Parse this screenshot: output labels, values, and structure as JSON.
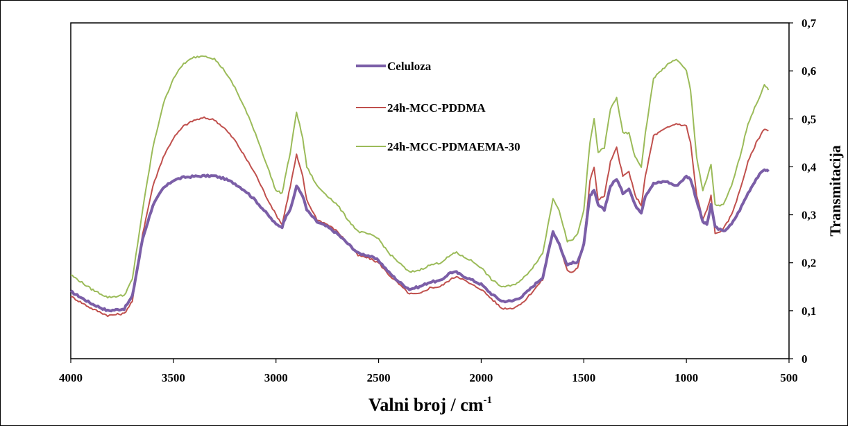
{
  "chart_data": {
    "type": "line",
    "title": "",
    "xlabel": "Valni broj / cm",
    "xlabel_sup": "-1",
    "ylabel": "Transmitacija",
    "xlim": [
      4000,
      500
    ],
    "ylim": [
      0,
      0.7
    ],
    "x_ticks": [
      "4000",
      "3500",
      "3000",
      "2500",
      "2000",
      "1500",
      "1000",
      "500"
    ],
    "y_ticks": [
      "0",
      "0,1",
      "0,2",
      "0,3",
      "0,4",
      "0,5",
      "0,6",
      "0,7"
    ],
    "y_axis_side": "right",
    "grid": false,
    "legend_position": "upper-middle",
    "series": [
      {
        "name": "Celuloza",
        "color": "#7b5ea7",
        "width": 4,
        "x": [
          4000,
          3900,
          3820,
          3740,
          3700,
          3650,
          3600,
          3550,
          3500,
          3450,
          3400,
          3350,
          3300,
          3250,
          3200,
          3150,
          3100,
          3050,
          3000,
          2970,
          2950,
          2930,
          2900,
          2870,
          2850,
          2800,
          2750,
          2700,
          2650,
          2600,
          2550,
          2500,
          2450,
          2400,
          2350,
          2300,
          2250,
          2200,
          2150,
          2120,
          2100,
          2050,
          2000,
          1950,
          1900,
          1850,
          1800,
          1750,
          1700,
          1650,
          1620,
          1600,
          1580,
          1560,
          1530,
          1500,
          1470,
          1450,
          1430,
          1400,
          1370,
          1340,
          1310,
          1280,
          1250,
          1220,
          1200,
          1160,
          1100,
          1050,
          1000,
          980,
          950,
          920,
          900,
          880,
          860,
          820,
          780,
          740,
          700,
          660,
          620,
          600
        ],
        "y": [
          0.14,
          0.115,
          0.1,
          0.104,
          0.13,
          0.25,
          0.32,
          0.355,
          0.372,
          0.378,
          0.38,
          0.381,
          0.381,
          0.375,
          0.365,
          0.35,
          0.33,
          0.305,
          0.28,
          0.275,
          0.3,
          0.31,
          0.36,
          0.34,
          0.31,
          0.285,
          0.275,
          0.26,
          0.24,
          0.22,
          0.215,
          0.205,
          0.18,
          0.16,
          0.145,
          0.15,
          0.16,
          0.162,
          0.18,
          0.18,
          0.175,
          0.165,
          0.155,
          0.135,
          0.12,
          0.12,
          0.13,
          0.15,
          0.17,
          0.265,
          0.24,
          0.215,
          0.195,
          0.2,
          0.2,
          0.24,
          0.34,
          0.35,
          0.32,
          0.31,
          0.36,
          0.375,
          0.345,
          0.355,
          0.32,
          0.305,
          0.34,
          0.365,
          0.37,
          0.36,
          0.38,
          0.375,
          0.33,
          0.285,
          0.28,
          0.32,
          0.275,
          0.265,
          0.28,
          0.31,
          0.345,
          0.375,
          0.395,
          0.39
        ]
      },
      {
        "name": "24h-MCC-PDDMA",
        "color": "#c0504d",
        "width": 2,
        "x": [
          4000,
          3900,
          3820,
          3740,
          3700,
          3650,
          3600,
          3550,
          3500,
          3450,
          3400,
          3350,
          3300,
          3250,
          3200,
          3150,
          3100,
          3050,
          3000,
          2970,
          2950,
          2930,
          2900,
          2870,
          2850,
          2800,
          2750,
          2700,
          2650,
          2600,
          2550,
          2500,
          2450,
          2400,
          2350,
          2300,
          2250,
          2200,
          2150,
          2120,
          2100,
          2050,
          2000,
          1950,
          1900,
          1850,
          1800,
          1750,
          1700,
          1650,
          1620,
          1600,
          1580,
          1560,
          1530,
          1500,
          1470,
          1450,
          1430,
          1400,
          1370,
          1340,
          1310,
          1280,
          1250,
          1220,
          1200,
          1160,
          1100,
          1050,
          1000,
          980,
          950,
          920,
          900,
          880,
          860,
          820,
          780,
          740,
          700,
          660,
          620,
          600
        ],
        "y": [
          0.13,
          0.105,
          0.09,
          0.094,
          0.12,
          0.26,
          0.36,
          0.42,
          0.46,
          0.485,
          0.497,
          0.502,
          0.498,
          0.48,
          0.455,
          0.42,
          0.385,
          0.34,
          0.3,
          0.28,
          0.32,
          0.36,
          0.425,
          0.38,
          0.33,
          0.29,
          0.28,
          0.265,
          0.24,
          0.215,
          0.21,
          0.2,
          0.175,
          0.155,
          0.135,
          0.135,
          0.148,
          0.15,
          0.165,
          0.172,
          0.168,
          0.155,
          0.145,
          0.125,
          0.105,
          0.105,
          0.115,
          0.14,
          0.165,
          0.265,
          0.24,
          0.21,
          0.185,
          0.18,
          0.19,
          0.24,
          0.37,
          0.4,
          0.33,
          0.34,
          0.41,
          0.44,
          0.38,
          0.39,
          0.34,
          0.32,
          0.38,
          0.465,
          0.48,
          0.49,
          0.485,
          0.45,
          0.34,
          0.29,
          0.31,
          0.34,
          0.26,
          0.27,
          0.3,
          0.35,
          0.41,
          0.45,
          0.48,
          0.475
        ]
      },
      {
        "name": "24h-MCC-PDMAEMA-30",
        "color": "#9bbb59",
        "width": 2,
        "x": [
          4000,
          3900,
          3820,
          3740,
          3700,
          3650,
          3600,
          3550,
          3500,
          3450,
          3400,
          3350,
          3300,
          3250,
          3200,
          3150,
          3100,
          3050,
          3000,
          2970,
          2950,
          2930,
          2900,
          2870,
          2850,
          2800,
          2750,
          2700,
          2650,
          2600,
          2550,
          2500,
          2450,
          2400,
          2350,
          2300,
          2250,
          2200,
          2150,
          2120,
          2100,
          2050,
          2000,
          1950,
          1900,
          1850,
          1800,
          1750,
          1700,
          1650,
          1620,
          1600,
          1580,
          1560,
          1530,
          1500,
          1470,
          1450,
          1430,
          1400,
          1370,
          1340,
          1310,
          1280,
          1250,
          1220,
          1200,
          1160,
          1100,
          1050,
          1000,
          980,
          950,
          920,
          900,
          880,
          860,
          820,
          780,
          740,
          700,
          660,
          620,
          600
        ],
        "y": [
          0.175,
          0.145,
          0.128,
          0.132,
          0.165,
          0.31,
          0.44,
          0.53,
          0.585,
          0.615,
          0.628,
          0.632,
          0.625,
          0.6,
          0.565,
          0.52,
          0.47,
          0.41,
          0.35,
          0.345,
          0.39,
          0.43,
          0.515,
          0.46,
          0.4,
          0.36,
          0.34,
          0.32,
          0.29,
          0.265,
          0.26,
          0.25,
          0.22,
          0.2,
          0.18,
          0.185,
          0.195,
          0.2,
          0.215,
          0.222,
          0.215,
          0.205,
          0.19,
          0.165,
          0.15,
          0.152,
          0.165,
          0.19,
          0.22,
          0.335,
          0.31,
          0.275,
          0.245,
          0.245,
          0.26,
          0.31,
          0.45,
          0.5,
          0.43,
          0.44,
          0.52,
          0.545,
          0.47,
          0.47,
          0.42,
          0.4,
          0.47,
          0.585,
          0.61,
          0.625,
          0.6,
          0.56,
          0.42,
          0.35,
          0.375,
          0.405,
          0.32,
          0.32,
          0.36,
          0.42,
          0.49,
          0.53,
          0.57,
          0.56
        ]
      }
    ]
  }
}
